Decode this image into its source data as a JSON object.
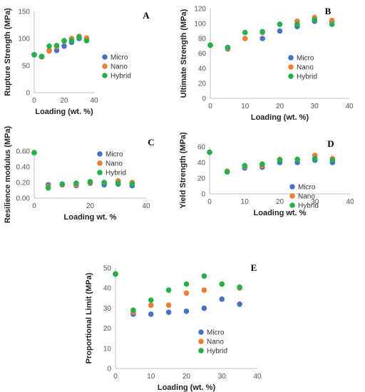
{
  "colors": {
    "Micro": "#4472c4",
    "Nano": "#ed7d31",
    "Hybrid": "#22b14c"
  },
  "chart_data": [
    {
      "type": "scatter",
      "panel_letter": "A",
      "title": "",
      "xlabel": "Loading (wt. %)",
      "ylabel": "Rupture Strength (MPa)",
      "xlim": [
        0,
        40
      ],
      "ylim": [
        0,
        150
      ],
      "x_ticks": [
        "0",
        "20",
        "40"
      ],
      "y_ticks": [
        "0",
        "50",
        "100",
        "150"
      ],
      "grid": false,
      "legend_position": "right",
      "series": [
        {
          "name": "Micro",
          "points": [
            [
              0,
              70
            ],
            [
              5,
              66
            ],
            [
              10,
              78
            ],
            [
              15,
              78
            ],
            [
              20,
              86
            ],
            [
              25,
              93
            ],
            [
              30,
              100
            ],
            [
              35,
              97
            ]
          ]
        },
        {
          "name": "Nano",
          "points": [
            [
              0,
              70
            ],
            [
              5,
              66
            ],
            [
              10,
              77
            ],
            [
              15,
              85
            ],
            [
              20,
              95
            ],
            [
              25,
              100
            ],
            [
              30,
              104
            ],
            [
              35,
              101
            ]
          ]
        },
        {
          "name": "Hybrid",
          "points": [
            [
              0,
              70
            ],
            [
              5,
              67
            ],
            [
              10,
              86
            ],
            [
              15,
              87
            ],
            [
              20,
              96
            ],
            [
              25,
              96
            ],
            [
              30,
              102
            ],
            [
              35,
              96
            ]
          ]
        }
      ]
    },
    {
      "type": "scatter",
      "panel_letter": "B",
      "title": "",
      "xlabel": "Loading (wt. %)",
      "ylabel": "Ultimate Strength (MPa)",
      "xlim": [
        0,
        40
      ],
      "ylim": [
        0,
        120
      ],
      "x_ticks": [
        "0",
        "10",
        "20",
        "30",
        "40"
      ],
      "y_ticks": [
        "0",
        "20",
        "40",
        "60",
        "80",
        "100",
        "120"
      ],
      "grid": false,
      "legend_position": "right",
      "series": [
        {
          "name": "Micro",
          "points": [
            [
              0,
              71
            ],
            [
              5,
              66
            ],
            [
              10,
              80
            ],
            [
              15,
              80
            ],
            [
              20,
              90
            ],
            [
              25,
              96
            ],
            [
              30,
              103
            ],
            [
              35,
              103
            ]
          ]
        },
        {
          "name": "Nano",
          "points": [
            [
              0,
              71
            ],
            [
              5,
              67
            ],
            [
              10,
              80
            ],
            [
              15,
              88
            ],
            [
              20,
              99
            ],
            [
              25,
              103
            ],
            [
              30,
              108
            ],
            [
              35,
              104
            ]
          ]
        },
        {
          "name": "Hybrid",
          "points": [
            [
              0,
              71
            ],
            [
              5,
              68
            ],
            [
              10,
              88
            ],
            [
              15,
              89
            ],
            [
              20,
              99
            ],
            [
              25,
              99
            ],
            [
              30,
              105
            ],
            [
              35,
              99
            ]
          ]
        }
      ]
    },
    {
      "type": "scatter",
      "panel_letter": "C",
      "title": "",
      "xlabel": "Loading wt. %",
      "ylabel": "Resilience modulus (MPa)",
      "xlim": [
        0,
        40
      ],
      "ylim": [
        0,
        0.6
      ],
      "x_ticks": [
        "0",
        "20",
        "40"
      ],
      "y_ticks": [
        "0.00",
        "0.20",
        "0.40",
        "0.60"
      ],
      "grid": false,
      "legend_position": "right",
      "series": [
        {
          "name": "Micro",
          "points": [
            [
              0,
              0.58
            ],
            [
              5,
              0.17
            ],
            [
              10,
              0.17
            ],
            [
              15,
              0.16
            ],
            [
              20,
              0.19
            ],
            [
              25,
              0.17
            ],
            [
              30,
              0.18
            ],
            [
              35,
              0.16
            ]
          ]
        },
        {
          "name": "Nano",
          "points": [
            [
              0,
              0.58
            ],
            [
              5,
              0.15
            ],
            [
              10,
              0.17
            ],
            [
              15,
              0.17
            ],
            [
              20,
              0.2
            ],
            [
              25,
              0.2
            ],
            [
              30,
              0.22
            ],
            [
              35,
              0.2
            ]
          ]
        },
        {
          "name": "Hybrid",
          "points": [
            [
              0,
              0.58
            ],
            [
              5,
              0.13
            ],
            [
              10,
              0.18
            ],
            [
              15,
              0.19
            ],
            [
              20,
              0.21
            ],
            [
              25,
              0.2
            ],
            [
              30,
              0.19
            ],
            [
              35,
              0.18
            ]
          ]
        }
      ]
    },
    {
      "type": "scatter",
      "panel_letter": "D",
      "title": "",
      "xlabel": "Loading wt. %",
      "ylabel": "Yield Strength (MPa)",
      "xlim": [
        0,
        40
      ],
      "ylim": [
        0,
        60
      ],
      "x_ticks": [
        "0",
        "10",
        "20",
        "30",
        "40"
      ],
      "y_ticks": [
        "0",
        "20",
        "40",
        "60"
      ],
      "grid": false,
      "legend_position": "right",
      "series": [
        {
          "name": "Micro",
          "points": [
            [
              0,
              53
            ],
            [
              5,
              28
            ],
            [
              10,
              33
            ],
            [
              15,
              34
            ],
            [
              20,
              40
            ],
            [
              25,
              40
            ],
            [
              30,
              43
            ],
            [
              35,
              40
            ]
          ]
        },
        {
          "name": "Nano",
          "points": [
            [
              0,
              53
            ],
            [
              5,
              29
            ],
            [
              10,
              35
            ],
            [
              15,
              36
            ],
            [
              20,
              44
            ],
            [
              25,
              44
            ],
            [
              30,
              49
            ],
            [
              35,
              45
            ]
          ]
        },
        {
          "name": "Hybrid",
          "points": [
            [
              0,
              53
            ],
            [
              5,
              28
            ],
            [
              10,
              36
            ],
            [
              15,
              38
            ],
            [
              20,
              43
            ],
            [
              25,
              44
            ],
            [
              30,
              45
            ],
            [
              35,
              43
            ]
          ]
        }
      ]
    },
    {
      "type": "scatter",
      "panel_letter": "E",
      "title": "",
      "xlabel": "Loading (wt. %)",
      "ylabel": "Proportional Limit (MPa)",
      "xlim": [
        0,
        40
      ],
      "ylim": [
        0,
        50
      ],
      "x_ticks": [
        "0",
        "10",
        "20",
        "30",
        "40"
      ],
      "y_ticks": [
        "0",
        "10",
        "20",
        "30",
        "40",
        "50"
      ],
      "grid": false,
      "legend_position": "bottom-right",
      "series": [
        {
          "name": "Micro",
          "points": [
            [
              0,
              47
            ],
            [
              5,
              27
            ],
            [
              10,
              27
            ],
            [
              15,
              28
            ],
            [
              20,
              28.5
            ],
            [
              25,
              30
            ],
            [
              30,
              34.5
            ],
            [
              35,
              32
            ]
          ]
        },
        {
          "name": "Nano",
          "points": [
            [
              0,
              47
            ],
            [
              5,
              28
            ],
            [
              10,
              31.5
            ],
            [
              15,
              31.5
            ],
            [
              20,
              37.5
            ],
            [
              25,
              39
            ],
            [
              30,
              42
            ],
            [
              35,
              40
            ]
          ]
        },
        {
          "name": "Hybrid",
          "points": [
            [
              0,
              47
            ],
            [
              5,
              29
            ],
            [
              10,
              34
            ],
            [
              15,
              39
            ],
            [
              20,
              42
            ],
            [
              25,
              46
            ],
            [
              30,
              42
            ],
            [
              35,
              40.5
            ]
          ]
        }
      ]
    }
  ]
}
